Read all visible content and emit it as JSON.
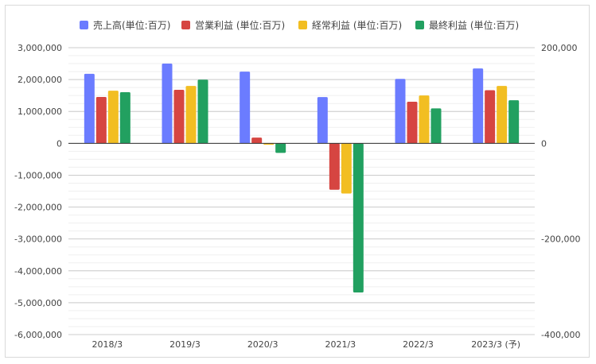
{
  "chart_data": {
    "type": "bar",
    "categories": [
      "2018/3",
      "2019/3",
      "2020/3",
      "2021/3",
      "2022/3",
      "2023/3 (予)"
    ],
    "series": [
      {
        "name": "売上高(単位:百万)",
        "axis": "left",
        "color": "#6b7cff",
        "values": [
          2180000,
          2500000,
          2250000,
          1450000,
          2020000,
          2350000
        ]
      },
      {
        "name": "営業利益 (単位:百万)",
        "axis": "right",
        "color": "#d64541",
        "values": [
          97000,
          112000,
          12000,
          -97000,
          87000,
          111000
        ]
      },
      {
        "name": "経常利益 (単位:百万)",
        "axis": "right",
        "color": "#f2be22",
        "values": [
          110000,
          120000,
          -3000,
          -105000,
          100000,
          120000
        ]
      },
      {
        "name": "最終利益 (単位:百万)",
        "axis": "right",
        "color": "#22a060",
        "values": [
          107000,
          133000,
          -20000,
          -312000,
          73000,
          90000
        ]
      }
    ],
    "y_left": {
      "min": -6000000,
      "max": 3000000,
      "step": 1000000,
      "tick_labels": [
        "3,000,000",
        "2,000,000",
        "1,000,000",
        "0",
        "-1,000,000",
        "-2,000,000",
        "-3,000,000",
        "-4,000,000",
        "-5,000,000",
        "-6,000,000"
      ]
    },
    "y_right": {
      "min": -400000,
      "max": 200000,
      "step": 200000,
      "tick_labels": [
        "200,000",
        "0",
        "-200,000",
        "-400,000"
      ]
    },
    "grid": true,
    "legend_position": "top"
  }
}
